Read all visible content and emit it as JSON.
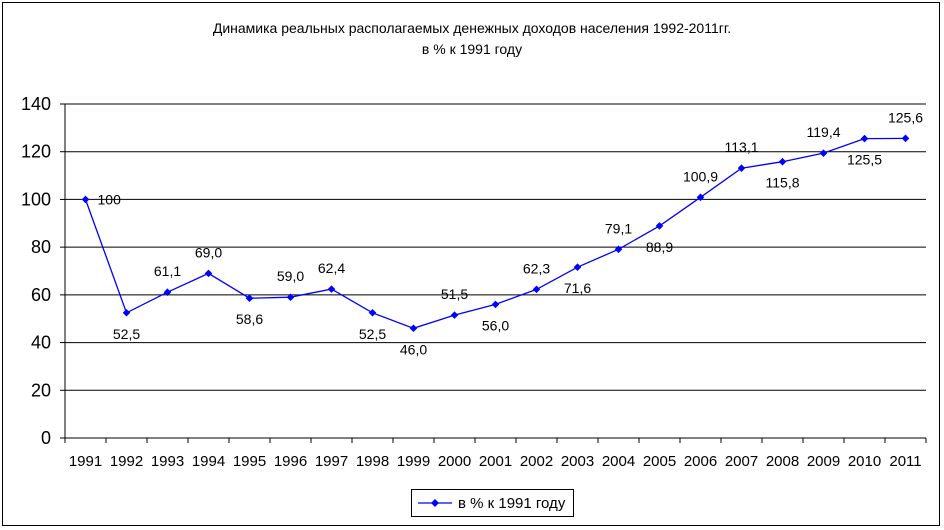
{
  "chart_data": {
    "type": "line",
    "title": "Динамика реальных располагаемых денежных доходов населения 1992-2011гг.",
    "subtitle": "в % к 1991 году",
    "xlabel": "",
    "ylabel": "",
    "categories": [
      "1991",
      "1992",
      "1993",
      "1994",
      "1995",
      "1996",
      "1997",
      "1998",
      "1999",
      "2000",
      "2001",
      "2002",
      "2003",
      "2004",
      "2005",
      "2006",
      "2007",
      "2008",
      "2009",
      "2010",
      "2011"
    ],
    "series": [
      {
        "name": "в % к 1991 году",
        "values": [
          100,
          52.5,
          61.1,
          69.0,
          58.6,
          59.0,
          62.4,
          52.5,
          46.0,
          51.5,
          56.0,
          62.3,
          71.6,
          79.1,
          88.9,
          100.9,
          113.1,
          115.8,
          119.4,
          125.5,
          125.6
        ],
        "labels": [
          "100",
          "52,5",
          "61,1",
          "69,0",
          "58,6",
          "59,0",
          "62,4",
          "52,5",
          "46,0",
          "51,5",
          "56,0",
          "62,3",
          "71,6",
          "79,1",
          "88,9",
          "100,9",
          "113,1",
          "115,8",
          "119,4",
          "125,5",
          "125,6"
        ],
        "label_positions": [
          "right",
          "below",
          "above",
          "above",
          "below",
          "above",
          "above",
          "below",
          "below",
          "above",
          "below",
          "above",
          "below",
          "above",
          "below",
          "above",
          "above",
          "below",
          "above",
          "below",
          "above"
        ],
        "color": "#0000ff",
        "marker": "diamond"
      }
    ],
    "ylim": [
      0,
      140
    ],
    "yticks": [
      0,
      20,
      40,
      60,
      80,
      100,
      120,
      140
    ],
    "grid": true,
    "legend_position": "bottom"
  }
}
